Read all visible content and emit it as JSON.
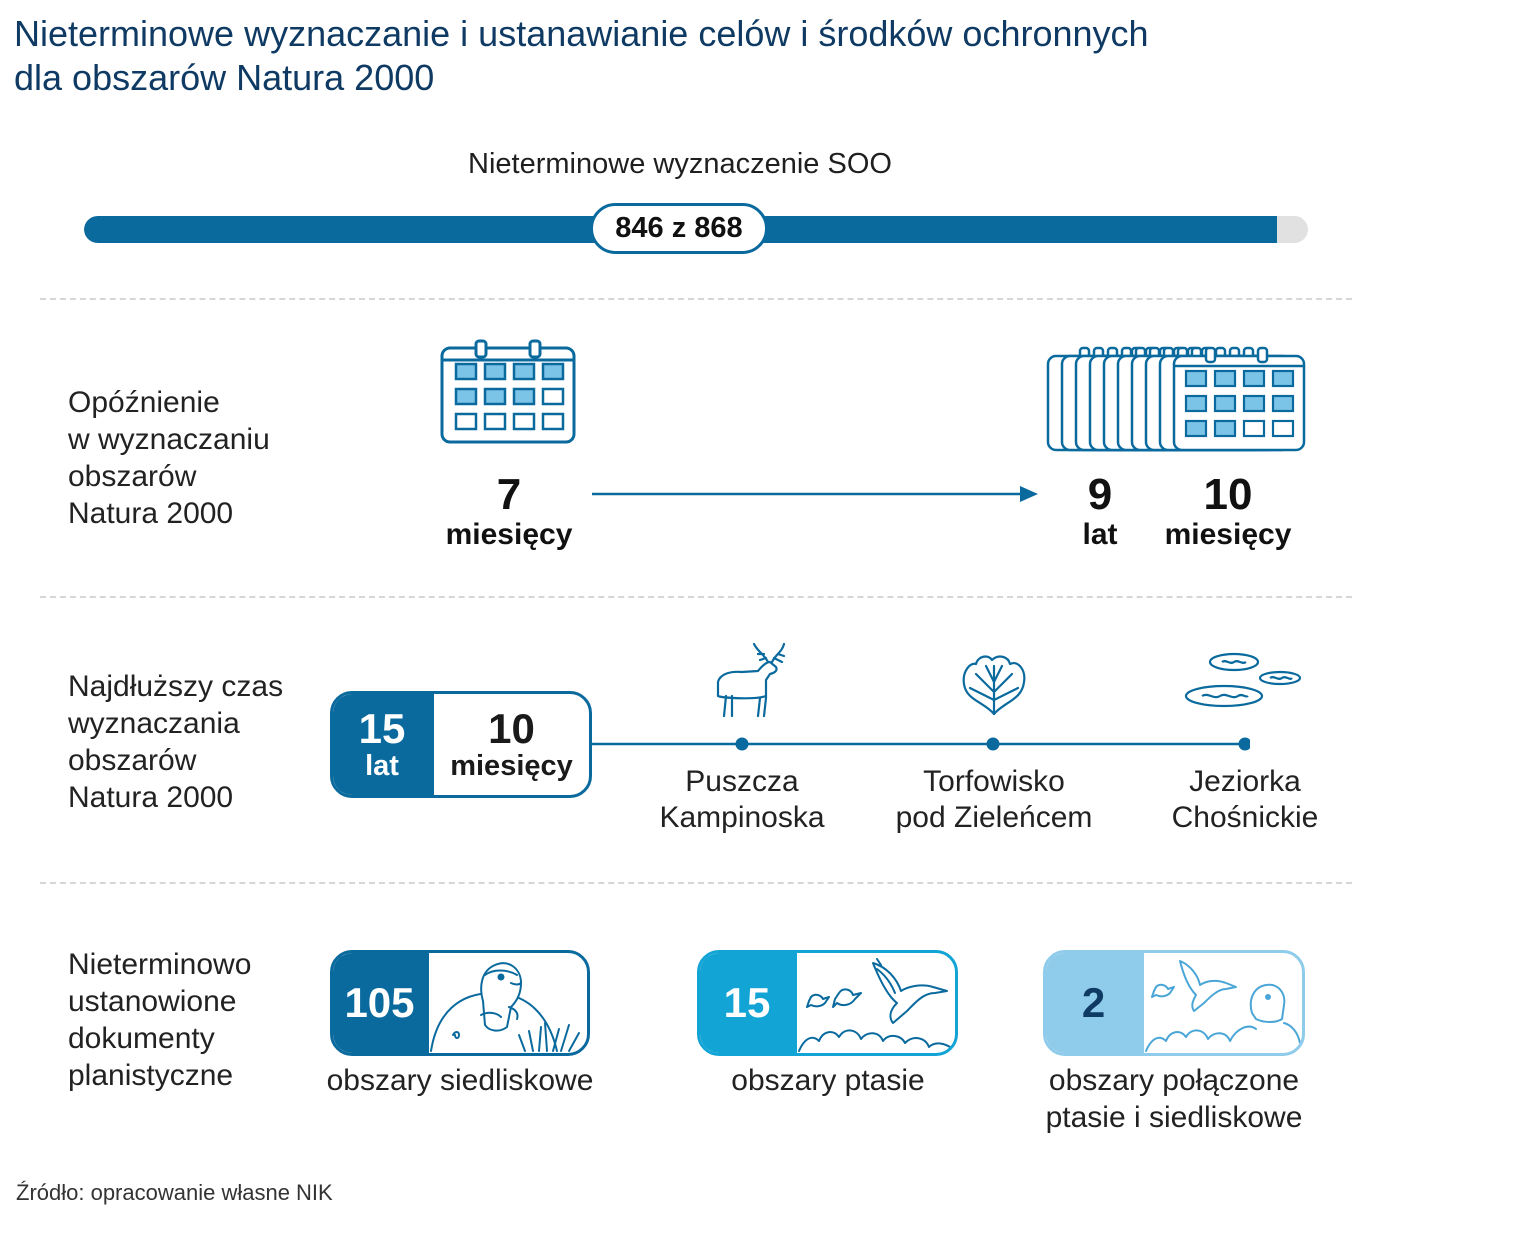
{
  "title": {
    "line1": "Nieterminowe wyznaczanie i ustanawianie celów i środków ochronnych",
    "line2": "dla obszarów Natura 2000"
  },
  "soo": {
    "label": "Nieterminowe wyznaczenie SOO",
    "badge": "846 z 868",
    "value": 846,
    "total": 868
  },
  "delay": {
    "label": [
      "Opóźnienie",
      "w wyznaczaniu",
      "obszarów",
      "Natura 2000"
    ],
    "start": {
      "number": "7",
      "unit": "miesięcy",
      "icon": "calendar-icon"
    },
    "end": {
      "years_number": "9",
      "years_unit": "lat",
      "months_number": "10",
      "months_unit": "miesięcy",
      "icon": "calendar-stack-icon"
    }
  },
  "longest": {
    "label": [
      "Najdłuższy czas",
      "wyznaczania",
      "obszarów",
      "Natura 2000"
    ],
    "years_number": "15",
    "years_unit": "lat",
    "months_number": "10",
    "months_unit": "miesięcy",
    "sites": [
      {
        "line1": "Puszcza",
        "line2": "Kampinoska",
        "icon": "moose-icon"
      },
      {
        "line1": "Torfowisko",
        "line2": "pod Zieleńcem",
        "icon": "leaf-icon"
      },
      {
        "line1": "Jeziorka",
        "line2": "Chośnickie",
        "icon": "lakes-icon"
      }
    ]
  },
  "documents": {
    "label": [
      "Nieterminowo",
      "ustanowione",
      "dokumenty",
      "planistyczne"
    ],
    "items": [
      {
        "number": "105",
        "caption1": "obszary siedliskowe",
        "caption2": "",
        "icon": "marmot-icon",
        "color": "#0a6a9e"
      },
      {
        "number": "15",
        "caption1": "obszary ptasie",
        "caption2": "",
        "icon": "birds-icon",
        "color": "#13a4d6"
      },
      {
        "number": "2",
        "caption1": "obszary połączone",
        "caption2": "ptasie i siedliskowe",
        "icon": "birds-marmot-icon",
        "color": "#8fcbea"
      }
    ]
  },
  "source": "Źródło: opracowanie własne NIK",
  "colors": {
    "dark_blue": "#0a6a9e",
    "mid_blue": "#13a4d6",
    "light_blue": "#8fcbea",
    "cell_fill": "#7cc3e8",
    "title": "#0f3a63"
  }
}
